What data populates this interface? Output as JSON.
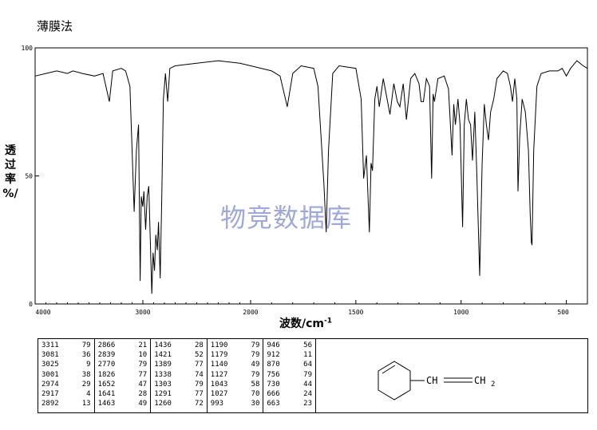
{
  "header": {
    "method_label": "薄膜法"
  },
  "watermark": "物竞数据库",
  "axes": {
    "ylabel_lines": [
      "透",
      "过",
      "率",
      "%/"
    ],
    "xlabel": "波数/cm",
    "xlabel_sup": "-1"
  },
  "structure": {
    "ch_label": "CH",
    "ch2_label": "CH",
    "ch2_sub": "2"
  },
  "peak_table": [
    [
      [
        "3311",
        "79"
      ],
      [
        "3081",
        "36"
      ],
      [
        "3025",
        "9"
      ],
      [
        "3001",
        "38"
      ],
      [
        "2974",
        "29"
      ],
      [
        "2917",
        "4"
      ],
      [
        "2892",
        "13"
      ]
    ],
    [
      [
        "2866",
        "21"
      ],
      [
        "2839",
        "10"
      ],
      [
        "2770",
        "79"
      ],
      [
        "1826",
        "77"
      ],
      [
        "1652",
        "47"
      ],
      [
        "1641",
        "28"
      ],
      [
        "1463",
        "49"
      ]
    ],
    [
      [
        "1436",
        "28"
      ],
      [
        "1421",
        "52"
      ],
      [
        "1389",
        "77"
      ],
      [
        "1338",
        "74"
      ],
      [
        "1303",
        "79"
      ],
      [
        "1291",
        "77"
      ],
      [
        "1260",
        "72"
      ]
    ],
    [
      [
        "1190",
        "79"
      ],
      [
        "1179",
        "79"
      ],
      [
        "1140",
        "49"
      ],
      [
        "1127",
        "79"
      ],
      [
        "1043",
        "58"
      ],
      [
        "1027",
        "70"
      ],
      [
        "993",
        "30"
      ]
    ],
    [
      [
        "946",
        "56"
      ],
      [
        "912",
        "11"
      ],
      [
        "870",
        "64"
      ],
      [
        "756",
        "79"
      ],
      [
        "730",
        "44"
      ],
      [
        "666",
        "24"
      ],
      [
        "663",
        "23"
      ]
    ]
  ],
  "chart_data": {
    "type": "line",
    "title": "",
    "xlabel": "波数/cm-1",
    "ylabel": "透过率%/",
    "xlim": [
      4000,
      400
    ],
    "ylim": [
      0,
      100
    ],
    "xticks": [
      4000,
      3000,
      2000,
      1500,
      1000,
      500
    ],
    "yticks": [
      0,
      50,
      100
    ],
    "grid": false,
    "series": [
      {
        "points": [
          [
            4000,
            89
          ],
          [
            3900,
            90
          ],
          [
            3800,
            91
          ],
          [
            3700,
            90
          ],
          [
            3650,
            91
          ],
          [
            3560,
            90
          ],
          [
            3450,
            89
          ],
          [
            3370,
            90
          ],
          [
            3311,
            79
          ],
          [
            3280,
            91
          ],
          [
            3200,
            92
          ],
          [
            3160,
            91
          ],
          [
            3120,
            85
          ],
          [
            3081,
            36
          ],
          [
            3060,
            60
          ],
          [
            3040,
            70
          ],
          [
            3025,
            9
          ],
          [
            3015,
            42
          ],
          [
            3001,
            38
          ],
          [
            2990,
            44
          ],
          [
            2974,
            29
          ],
          [
            2960,
            42
          ],
          [
            2945,
            46
          ],
          [
            2917,
            4
          ],
          [
            2905,
            20
          ],
          [
            2892,
            13
          ],
          [
            2880,
            27
          ],
          [
            2866,
            21
          ],
          [
            2855,
            32
          ],
          [
            2839,
            10
          ],
          [
            2825,
            40
          ],
          [
            2810,
            80
          ],
          [
            2790,
            90
          ],
          [
            2770,
            79
          ],
          [
            2750,
            92
          ],
          [
            2700,
            93
          ],
          [
            2500,
            94
          ],
          [
            2300,
            95
          ],
          [
            2100,
            94
          ],
          [
            2000,
            93
          ],
          [
            1900,
            91
          ],
          [
            1860,
            89
          ],
          [
            1826,
            77
          ],
          [
            1800,
            90
          ],
          [
            1760,
            93
          ],
          [
            1700,
            92
          ],
          [
            1680,
            85
          ],
          [
            1652,
            47
          ],
          [
            1641,
            28
          ],
          [
            1630,
            60
          ],
          [
            1610,
            90
          ],
          [
            1580,
            93
          ],
          [
            1500,
            92
          ],
          [
            1475,
            80
          ],
          [
            1463,
            49
          ],
          [
            1450,
            58
          ],
          [
            1436,
            28
          ],
          [
            1428,
            55
          ],
          [
            1421,
            52
          ],
          [
            1410,
            80
          ],
          [
            1400,
            85
          ],
          [
            1389,
            77
          ],
          [
            1370,
            88
          ],
          [
            1338,
            74
          ],
          [
            1320,
            86
          ],
          [
            1303,
            79
          ],
          [
            1291,
            77
          ],
          [
            1275,
            86
          ],
          [
            1260,
            72
          ],
          [
            1240,
            88
          ],
          [
            1220,
            90
          ],
          [
            1200,
            86
          ],
          [
            1190,
            79
          ],
          [
            1179,
            79
          ],
          [
            1165,
            88
          ],
          [
            1150,
            85
          ],
          [
            1140,
            49
          ],
          [
            1133,
            82
          ],
          [
            1127,
            79
          ],
          [
            1110,
            88
          ],
          [
            1080,
            89
          ],
          [
            1060,
            84
          ],
          [
            1043,
            58
          ],
          [
            1035,
            78
          ],
          [
            1027,
            70
          ],
          [
            1015,
            80
          ],
          [
            1005,
            70
          ],
          [
            993,
            30
          ],
          [
            985,
            70
          ],
          [
            975,
            80
          ],
          [
            965,
            72
          ],
          [
            955,
            70
          ],
          [
            946,
            56
          ],
          [
            935,
            75
          ],
          [
            925,
            50
          ],
          [
            912,
            11
          ],
          [
            900,
            55
          ],
          [
            890,
            78
          ],
          [
            880,
            70
          ],
          [
            870,
            64
          ],
          [
            860,
            75
          ],
          [
            845,
            80
          ],
          [
            830,
            88
          ],
          [
            800,
            91
          ],
          [
            780,
            90
          ],
          [
            766,
            85
          ],
          [
            756,
            79
          ],
          [
            745,
            88
          ],
          [
            735,
            80
          ],
          [
            730,
            44
          ],
          [
            722,
            65
          ],
          [
            710,
            80
          ],
          [
            695,
            75
          ],
          [
            680,
            60
          ],
          [
            672,
            35
          ],
          [
            666,
            24
          ],
          [
            663,
            23
          ],
          [
            655,
            60
          ],
          [
            640,
            85
          ],
          [
            620,
            90
          ],
          [
            580,
            91
          ],
          [
            540,
            91
          ],
          [
            520,
            92
          ],
          [
            500,
            89
          ],
          [
            480,
            92
          ],
          [
            450,
            95
          ],
          [
            420,
            93
          ],
          [
            400,
            92
          ]
        ]
      }
    ]
  }
}
